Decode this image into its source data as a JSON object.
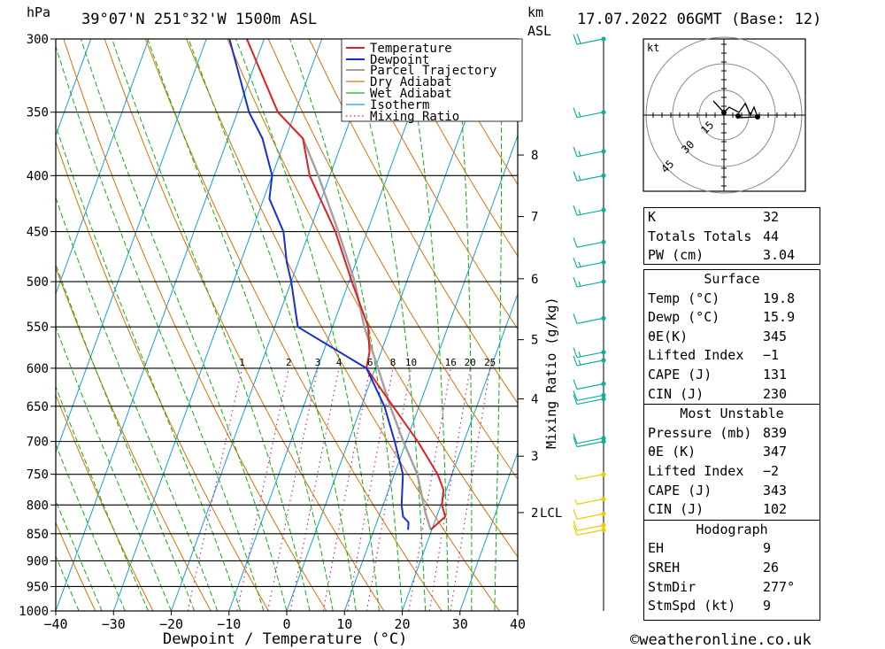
{
  "header": {
    "hpa_label": "hPa",
    "location": "39°07'N  251°32'W  1500m  ASL",
    "km_label": "km",
    "asl_label": "ASL",
    "date": "17.07.2022  06GMT  (Base: 12)"
  },
  "footer": {
    "xlabel": "Dewpoint / Temperature (°C)",
    "copyright": "©weatheronline.co.uk"
  },
  "colors": {
    "temperature": "#e02020",
    "dewpoint": "#1530d0",
    "parcel": "#a0a0a0",
    "dry_adiabat": "#e07000",
    "wet_adiabat": "#10b010",
    "isotherm": "#10a0e0",
    "mixing_ratio": "#d01090",
    "wind_barb_upper": "#10b0a0",
    "wind_barb_lower": "#e8d000"
  },
  "chart_data": [
    {
      "type": "skew-t",
      "xlabel": "Dewpoint / Temperature (°C)",
      "ylabel": "hPa",
      "xlim": [
        -40,
        40
      ],
      "ylim": [
        1000,
        300
      ],
      "x_ticks": [
        "−40",
        "−30",
        "−20",
        "−10",
        "0",
        "10",
        "20",
        "30",
        "40"
      ],
      "pressure_ticks": [
        300,
        350,
        400,
        450,
        500,
        550,
        600,
        650,
        700,
        750,
        800,
        850,
        900,
        950,
        1000
      ],
      "km_ticks": [
        {
          "label": "8",
          "p": 383
        },
        {
          "label": "7",
          "p": 436
        },
        {
          "label": "6",
          "p": 497
        },
        {
          "label": "5",
          "p": 565
        },
        {
          "label": "4",
          "p": 640
        },
        {
          "label": "3",
          "p": 722
        },
        {
          "label": "2",
          "p": 813
        }
      ],
      "lcl_label": "LCL",
      "lcl_pressure": 813,
      "mixing_ratio_label": "Mixing Ratio (g/kg)",
      "mixing_ratio_values": [
        "1",
        "2",
        "3",
        "4",
        "6",
        "8",
        "10",
        "16",
        "20",
        "25"
      ],
      "legend": [
        "Temperature",
        "Dewpoint",
        "Parcel Trajectory",
        "Dry Adiabat",
        "Wet Adiabat",
        "Isotherm",
        "Mixing Ratio"
      ],
      "temperature": [
        [
          843,
          19.8
        ],
        [
          820,
          21.5
        ],
        [
          800,
          20.2
        ],
        [
          775,
          19.5
        ],
        [
          750,
          17.5
        ],
        [
          700,
          12.0
        ],
        [
          650,
          5.5
        ],
        [
          600,
          -1.5
        ],
        [
          580,
          -2.0
        ],
        [
          550,
          -3.8
        ],
        [
          500,
          -9.5
        ],
        [
          450,
          -15.5
        ],
        [
          400,
          -23.5
        ],
        [
          370,
          -27.0
        ],
        [
          350,
          -33.0
        ],
        [
          300,
          -43.0
        ]
      ],
      "dewpoint": [
        [
          843,
          15.9
        ],
        [
          830,
          15.5
        ],
        [
          820,
          14.2
        ],
        [
          800,
          13.2
        ],
        [
          750,
          11.5
        ],
        [
          700,
          8.0
        ],
        [
          650,
          4.0
        ],
        [
          600,
          -1.5
        ],
        [
          550,
          -16.0
        ],
        [
          500,
          -20.0
        ],
        [
          480,
          -22.0
        ],
        [
          450,
          -24.5
        ],
        [
          420,
          -29.0
        ],
        [
          400,
          -30.0
        ],
        [
          370,
          -34.0
        ],
        [
          350,
          -38.0
        ],
        [
          300,
          -46.0
        ]
      ],
      "parcel": [
        [
          843,
          19.8
        ],
        [
          813,
          17.8
        ],
        [
          750,
          14.0
        ],
        [
          700,
          9.5
        ],
        [
          650,
          5.0
        ],
        [
          600,
          0.5
        ],
        [
          550,
          -4.5
        ],
        [
          500,
          -9.0
        ],
        [
          450,
          -15.0
        ],
        [
          400,
          -22.0
        ],
        [
          370,
          -27.0
        ]
      ],
      "winds_kt": [
        {
          "p": 300,
          "speed": 20
        },
        {
          "p": 350,
          "speed": 15
        },
        {
          "p": 380,
          "speed": 15
        },
        {
          "p": 400,
          "speed": 15
        },
        {
          "p": 430,
          "speed": 15
        },
        {
          "p": 460,
          "speed": 10
        },
        {
          "p": 480,
          "speed": 15
        },
        {
          "p": 500,
          "speed": 15
        },
        {
          "p": 540,
          "speed": 10
        },
        {
          "p": 580,
          "speed": 15
        },
        {
          "p": 590,
          "speed": 15
        },
        {
          "p": 620,
          "speed": 10
        },
        {
          "p": 635,
          "speed": 10
        },
        {
          "p": 640,
          "speed": 10
        },
        {
          "p": 695,
          "speed": 10
        },
        {
          "p": 700,
          "speed": 10
        },
        {
          "p": 750,
          "speed": 5
        },
        {
          "p": 790,
          "speed": 5
        },
        {
          "p": 815,
          "speed": 10
        },
        {
          "p": 835,
          "speed": 10
        },
        {
          "p": 843,
          "speed": 10
        }
      ]
    },
    {
      "type": "hodograph",
      "unit_label": "kt",
      "ring_labels": [
        "15",
        "30",
        "45"
      ]
    }
  ],
  "indices": {
    "rows": [
      {
        "label": "K",
        "value": "32"
      },
      {
        "label": "Totals Totals",
        "value": "44"
      },
      {
        "label": "PW (cm)",
        "value": "3.04"
      }
    ]
  },
  "surface": {
    "title": "Surface",
    "rows": [
      {
        "label": "Temp (°C)",
        "value": "19.8"
      },
      {
        "label": "Dewp (°C)",
        "value": "15.9"
      },
      {
        "label": "θE(K)",
        "value": "345"
      },
      {
        "label": "Lifted Index",
        "value": "−1"
      },
      {
        "label": "CAPE (J)",
        "value": "131"
      },
      {
        "label": "CIN (J)",
        "value": "230"
      }
    ]
  },
  "unstable": {
    "title": "Most Unstable",
    "rows": [
      {
        "label": "Pressure (mb)",
        "value": "839"
      },
      {
        "label": "θE (K)",
        "value": "347"
      },
      {
        "label": "Lifted Index",
        "value": "−2"
      },
      {
        "label": "CAPE (J)",
        "value": "343"
      },
      {
        "label": "CIN (J)",
        "value": "102"
      }
    ]
  },
  "hodo": {
    "title": "Hodograph",
    "rows": [
      {
        "label": "EH",
        "value": "9"
      },
      {
        "label": "SREH",
        "value": "26"
      },
      {
        "label": "StmDir",
        "value": "277°"
      },
      {
        "label": "StmSpd (kt)",
        "value": "9"
      }
    ]
  }
}
